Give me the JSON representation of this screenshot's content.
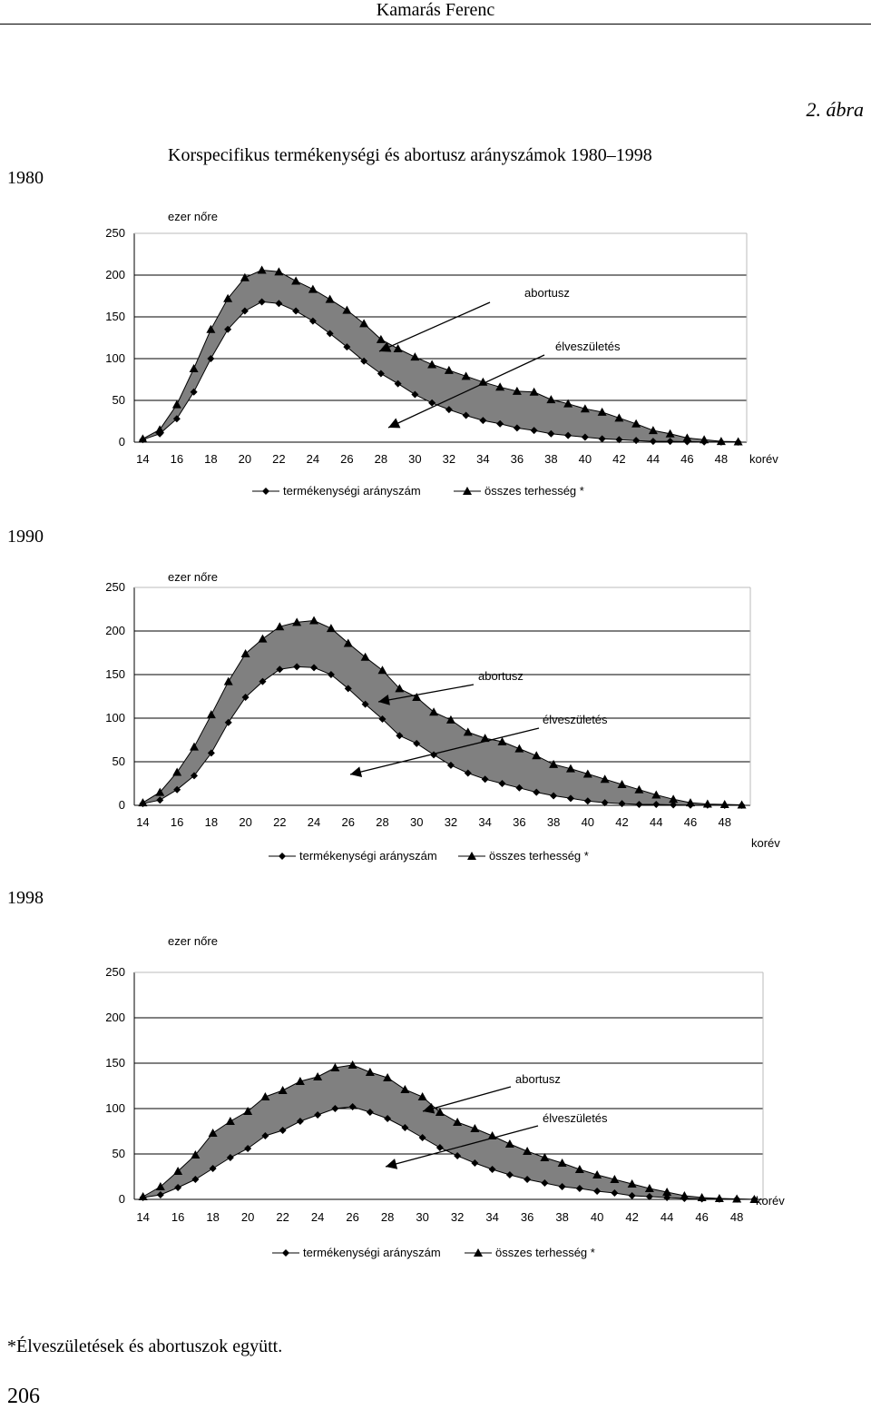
{
  "header": {
    "author": "Kamarás Ferenc"
  },
  "figure": {
    "label": "2. ábra",
    "title": "Korspecifikus termékenységi és abortusz arányszámok 1980–1998"
  },
  "footnote": "*Élveszületések és abortuszok együtt.",
  "page_number": "206",
  "chart_data": [
    {
      "type": "line",
      "year": "1980",
      "ylabel": "ezer nőre",
      "xlabel": "korév",
      "ylim": [
        0,
        250
      ],
      "yticks": [
        "0",
        "50",
        "100",
        "150",
        "200",
        "250"
      ],
      "xticks": [
        "14",
        "16",
        "18",
        "20",
        "22",
        "24",
        "26",
        "28",
        "30",
        "32",
        "34",
        "36",
        "38",
        "40",
        "42",
        "44",
        "46",
        "48"
      ],
      "grid": true,
      "legend": "bottom",
      "fill_between": "#808080",
      "annotations": [
        "abortusz",
        "élveszületés"
      ],
      "x": [
        14,
        15,
        16,
        17,
        18,
        19,
        20,
        21,
        22,
        23,
        24,
        25,
        26,
        27,
        28,
        29,
        30,
        31,
        32,
        33,
        34,
        35,
        36,
        37,
        38,
        39,
        40,
        41,
        42,
        43,
        44,
        45,
        46,
        47,
        48,
        49
      ],
      "series": [
        {
          "name": "termékenységi arányszám",
          "marker": "diamond",
          "values": [
            3,
            10,
            28,
            60,
            100,
            135,
            157,
            168,
            166,
            157,
            145,
            130,
            114,
            97,
            82,
            70,
            57,
            47,
            39,
            32,
            26,
            22,
            17,
            14,
            10,
            8,
            6,
            4,
            3,
            2,
            1,
            1,
            0.5,
            0.3,
            0.2,
            0
          ]
        },
        {
          "name": "összes terhesség *",
          "marker": "triangle",
          "values": [
            4,
            15,
            45,
            88,
            135,
            172,
            197,
            206,
            204,
            193,
            183,
            171,
            158,
            142,
            123,
            112,
            102,
            93,
            86,
            79,
            72,
            66,
            61,
            60,
            51,
            46,
            40,
            36,
            29,
            22,
            14,
            10,
            5,
            3,
            1,
            0.5
          ]
        }
      ]
    },
    {
      "type": "line",
      "year": "1990",
      "ylabel": "ezer nőre",
      "xlabel": "korév",
      "ylim": [
        0,
        250
      ],
      "yticks": [
        "0",
        "50",
        "100",
        "150",
        "200",
        "250"
      ],
      "xticks": [
        "14",
        "16",
        "18",
        "20",
        "22",
        "24",
        "26",
        "28",
        "30",
        "32",
        "34",
        "36",
        "38",
        "40",
        "42",
        "44",
        "46",
        "48"
      ],
      "grid": true,
      "legend": "bottom",
      "fill_between": "#808080",
      "annotations": [
        "abortusz",
        "élveszületés"
      ],
      "x": [
        14,
        15,
        16,
        17,
        18,
        19,
        20,
        21,
        22,
        23,
        24,
        25,
        26,
        27,
        28,
        29,
        30,
        31,
        32,
        33,
        34,
        35,
        36,
        37,
        38,
        39,
        40,
        41,
        42,
        43,
        44,
        45,
        46,
        47,
        48,
        49
      ],
      "series": [
        {
          "name": "termékenységi arányszám",
          "marker": "diamond",
          "values": [
            2,
            6,
            18,
            34,
            60,
            95,
            124,
            142,
            156,
            159,
            158,
            150,
            134,
            116,
            99,
            80,
            71,
            58,
            46,
            37,
            30,
            25,
            20,
            15,
            11,
            8,
            5,
            3,
            2,
            1,
            1,
            0.5,
            0.3,
            0.2,
            0,
            0
          ]
        },
        {
          "name": "összes terhesség *",
          "marker": "triangle",
          "values": [
            3,
            15,
            38,
            67,
            104,
            142,
            174,
            191,
            205,
            210,
            212,
            203,
            186,
            170,
            155,
            134,
            124,
            107,
            98,
            84,
            77,
            73,
            65,
            57,
            47,
            42,
            36,
            30,
            24,
            18,
            12,
            7,
            3,
            1.5,
            1,
            0.5
          ]
        }
      ]
    },
    {
      "type": "line",
      "year": "1998",
      "ylabel": "ezer nőre",
      "xlabel": "korév",
      "ylim": [
        0,
        250
      ],
      "yticks": [
        "0",
        "50",
        "100",
        "150",
        "200",
        "250"
      ],
      "xticks": [
        "14",
        "16",
        "18",
        "20",
        "22",
        "24",
        "26",
        "28",
        "30",
        "32",
        "34",
        "36",
        "38",
        "40",
        "42",
        "44",
        "46",
        "48"
      ],
      "grid": true,
      "legend": "bottom",
      "fill_between": "#808080",
      "annotations": [
        "abortusz",
        "élveszületés"
      ],
      "x": [
        14,
        15,
        16,
        17,
        18,
        19,
        20,
        21,
        22,
        23,
        24,
        25,
        26,
        27,
        28,
        29,
        30,
        31,
        32,
        33,
        34,
        35,
        36,
        37,
        38,
        39,
        40,
        41,
        42,
        43,
        44,
        45,
        46,
        47,
        48,
        49
      ],
      "series": [
        {
          "name": "termékenységi arányszám",
          "marker": "diamond",
          "values": [
            2,
            5,
            13,
            22,
            34,
            46,
            56,
            70,
            76,
            86,
            93,
            100,
            102,
            96,
            89,
            79,
            68,
            57,
            48,
            40,
            33,
            27,
            22,
            18,
            14,
            12,
            9,
            7,
            4,
            3,
            2,
            1,
            0.5,
            0.3,
            0.2,
            0
          ]
        },
        {
          "name": "összes terhesség *",
          "marker": "triangle",
          "values": [
            3,
            14,
            31,
            49,
            73,
            86,
            97,
            113,
            120,
            130,
            135,
            145,
            148,
            140,
            134,
            121,
            113,
            96,
            85,
            78,
            70,
            61,
            53,
            46,
            40,
            33,
            27,
            22,
            17,
            12,
            8,
            4,
            2,
            1,
            0.5,
            0
          ]
        }
      ]
    }
  ]
}
